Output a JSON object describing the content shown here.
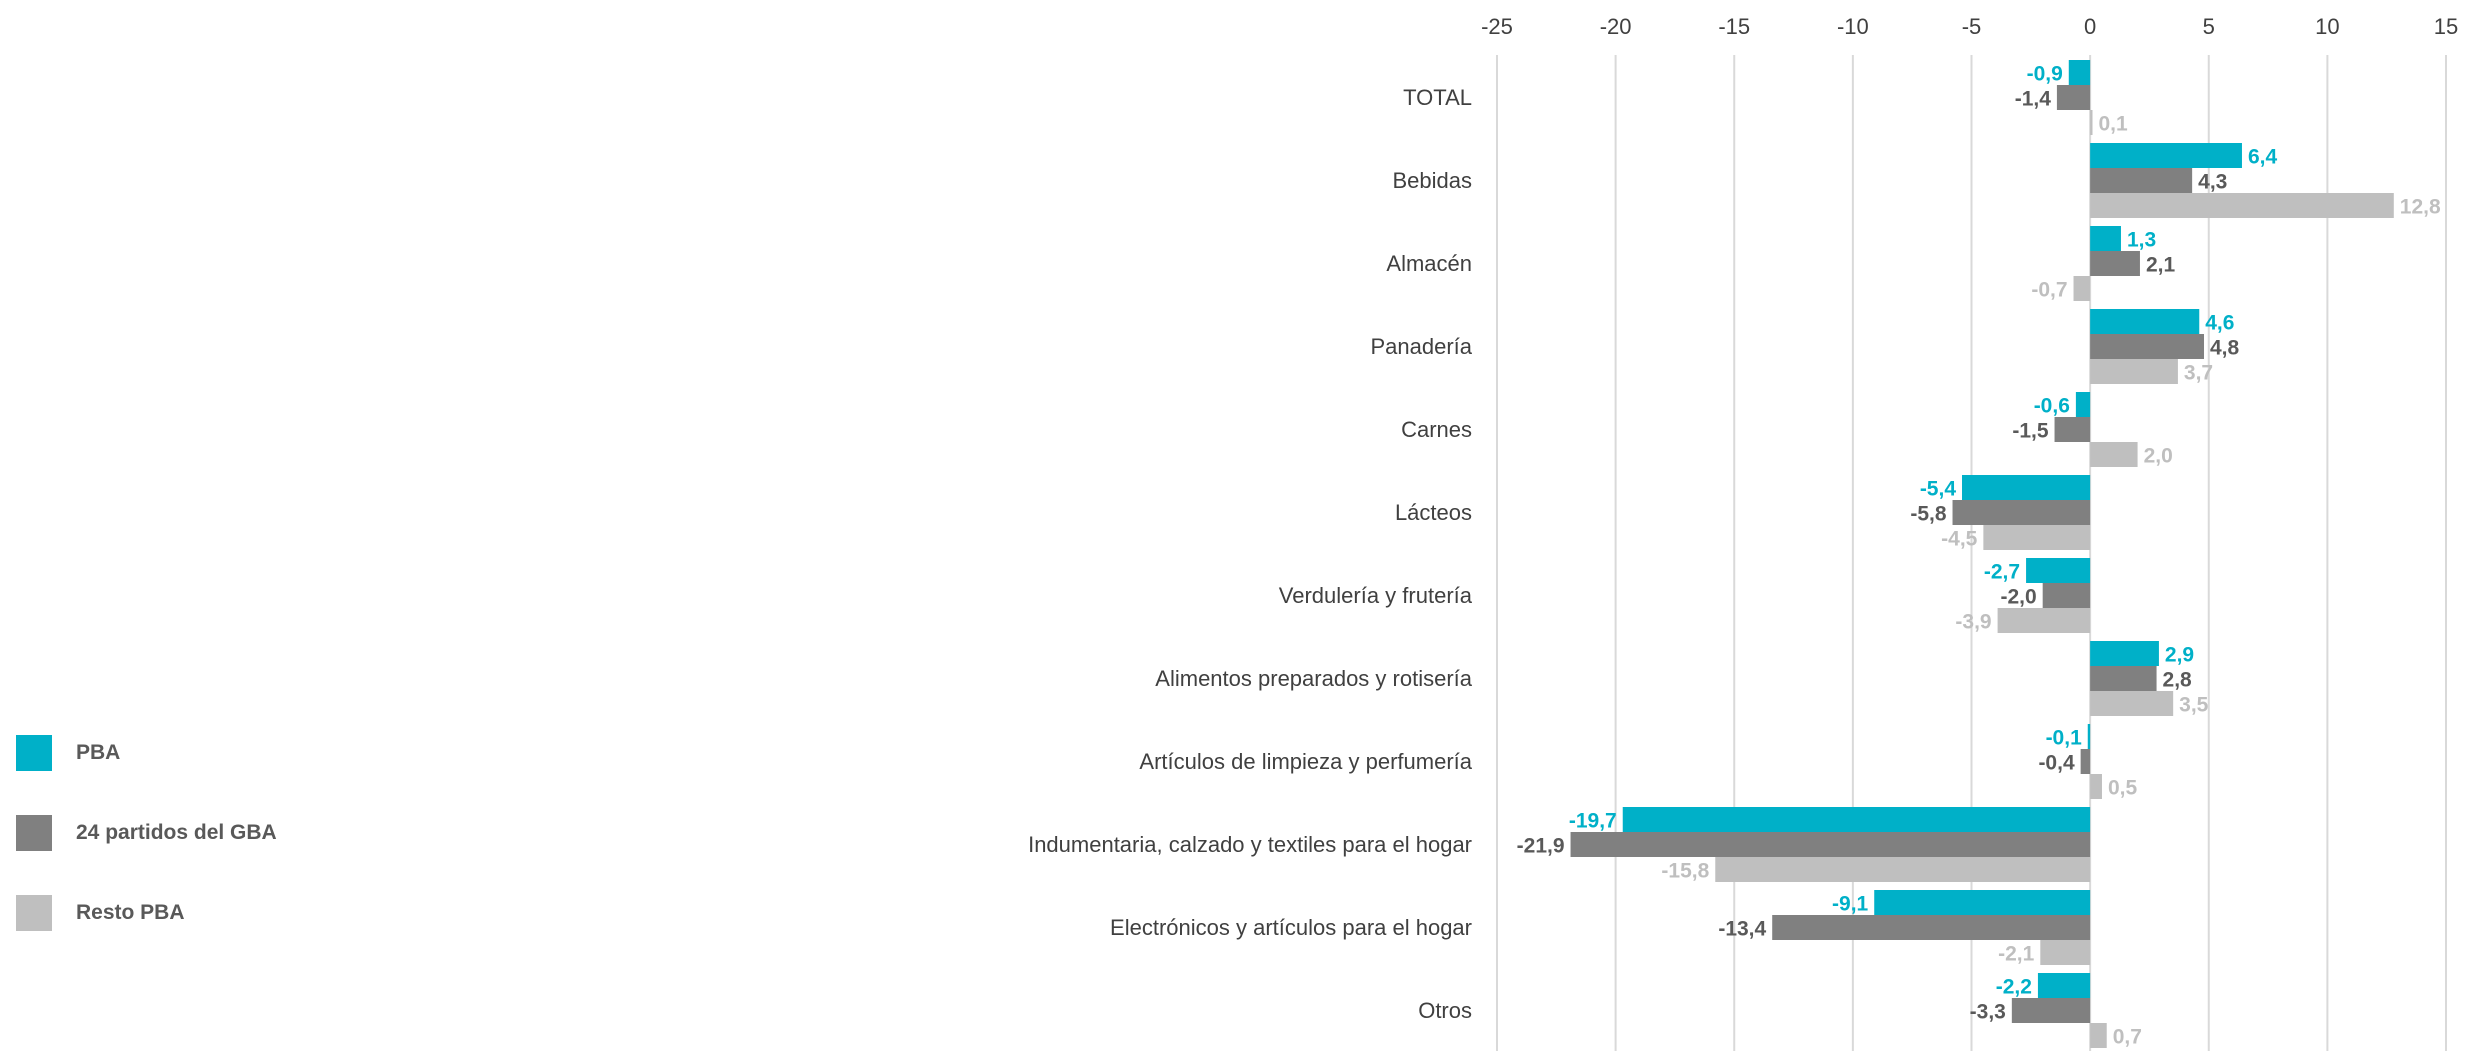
{
  "chart_data": {
    "type": "bar",
    "orientation": "horizontal",
    "categories": [
      "TOTAL",
      "Bebidas",
      "Almacén",
      "Panadería",
      "Carnes",
      "Lácteos",
      "Verdulería y frutería",
      "Alimentos preparados y rotisería",
      "Artículos de limpieza y perfumería",
      "Indumentaria, calzado y textiles para el hogar",
      "Electrónicos y artículos para el hogar",
      "Otros"
    ],
    "series": [
      {
        "name": "PBA",
        "color": "#00B0C8",
        "values": [
          -0.9,
          6.4,
          1.3,
          4.6,
          -0.6,
          -5.4,
          -2.7,
          2.9,
          -0.1,
          -19.7,
          -9.1,
          -2.2
        ],
        "labels": [
          "-0,9",
          "6,4",
          "1,3",
          "4,6",
          "-0,6",
          "-5,4",
          "-2,7",
          "2,9",
          "-0,1",
          "-19,7",
          "-9,1",
          "-2,2"
        ]
      },
      {
        "name": "24 partidos del GBA",
        "color": "#808080",
        "values": [
          -1.4,
          4.3,
          2.1,
          4.8,
          -1.5,
          -5.8,
          -2.0,
          2.8,
          -0.4,
          -21.9,
          -13.4,
          -3.3
        ],
        "labels": [
          "-1,4",
          "4,3",
          "2,1",
          "4,8",
          "-1,5",
          "-5,8",
          "-2,0",
          "2,8",
          "-0,4",
          "-21,9",
          "-13,4",
          "-3,3"
        ]
      },
      {
        "name": "Resto PBA",
        "color": "#BFBFBF",
        "values": [
          0.1,
          12.8,
          -0.7,
          3.7,
          2.0,
          -4.5,
          -3.9,
          3.5,
          0.5,
          -15.8,
          -2.1,
          0.7
        ],
        "labels": [
          "0,1",
          "12,8",
          "-0,7",
          "3,7",
          "2,0",
          "-4,5",
          "-3,9",
          "3,5",
          "0,5",
          "-15,8",
          "-2,1",
          "0,7"
        ]
      }
    ],
    "xlim": [
      -25,
      15
    ],
    "ticks": [
      -25,
      -20,
      -15,
      -10,
      -5,
      0,
      5,
      10,
      15
    ],
    "axis_position": "top",
    "grid": true,
    "legend_position": "bottom-left",
    "title": "",
    "xlabel": "",
    "ylabel": ""
  }
}
